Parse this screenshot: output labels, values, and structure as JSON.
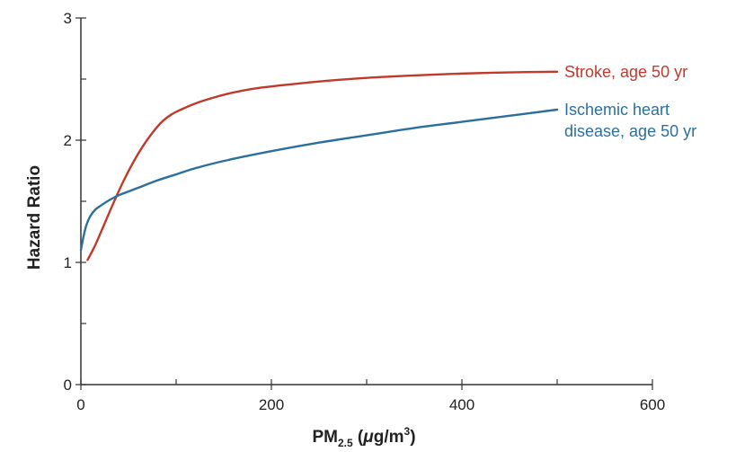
{
  "chart_data": {
    "type": "line",
    "title": "",
    "xlabel": {
      "main": "PM",
      "subscript": "2.5",
      "unit_open": " (",
      "mu": "μ",
      "unit_g": "g/m",
      "superscript": "3",
      "unit_close": ")"
    },
    "ylabel": "Hazard Ratio",
    "xlim": [
      0,
      600
    ],
    "ylim": [
      0,
      3
    ],
    "x_ticks": [
      0,
      200,
      400,
      600
    ],
    "x_minor_ticks": [
      100,
      300,
      500
    ],
    "y_ticks": [
      0,
      1,
      2,
      3
    ],
    "y_minor_ticks": [
      0.5,
      1.5,
      2.5
    ],
    "x_tick_labels": [
      "0",
      "200",
      "400",
      "600"
    ],
    "y_tick_labels": [
      "0",
      "1",
      "2",
      "3"
    ],
    "grid": false,
    "colors": {
      "axis": "#333333",
      "stroke": "#c0392b",
      "ihd": "#2a6f9e"
    },
    "series": [
      {
        "name": "Stroke, age 50 yr",
        "label_lines": [
          "Stroke, age 50 yr"
        ],
        "color": "#c0392b",
        "x": [
          7,
          15,
          25,
          35,
          45,
          55,
          65,
          75,
          85,
          95,
          105,
          120,
          140,
          160,
          180,
          200,
          250,
          300,
          350,
          400,
          450,
          500
        ],
        "y": [
          1.02,
          1.14,
          1.32,
          1.5,
          1.67,
          1.82,
          1.95,
          2.06,
          2.15,
          2.21,
          2.25,
          2.3,
          2.35,
          2.39,
          2.42,
          2.44,
          2.48,
          2.51,
          2.53,
          2.545,
          2.555,
          2.56
        ]
      },
      {
        "name": "Ischemic heart disease, age 50 yr",
        "label_lines": [
          "Ischemic heart",
          "disease, age 50 yr"
        ],
        "color": "#2a6f9e",
        "x": [
          0,
          3,
          6,
          10,
          15,
          20,
          30,
          40,
          50,
          60,
          80,
          100,
          120,
          150,
          200,
          250,
          300,
          350,
          400,
          450,
          500
        ],
        "y": [
          1.1,
          1.22,
          1.31,
          1.38,
          1.43,
          1.46,
          1.51,
          1.55,
          1.58,
          1.61,
          1.67,
          1.72,
          1.77,
          1.83,
          1.91,
          1.98,
          2.04,
          2.1,
          2.15,
          2.2,
          2.25
        ]
      }
    ]
  }
}
